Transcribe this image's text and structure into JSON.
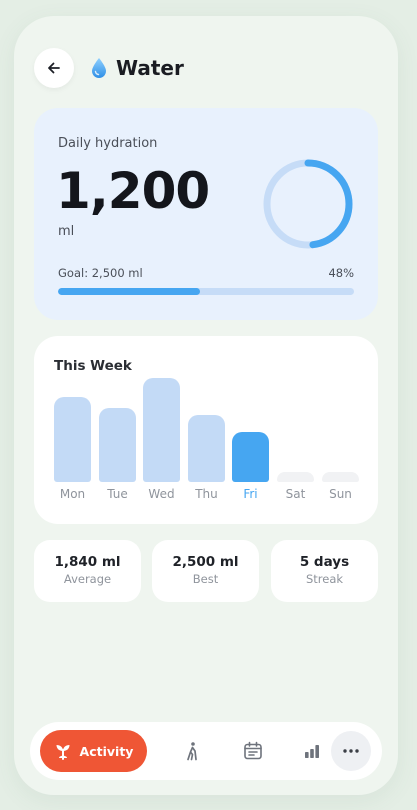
{
  "header": {
    "title": "Water",
    "back_icon": "arrow-left-icon",
    "title_icon": "water-drop-icon"
  },
  "hydration": {
    "label": "Daily hydration",
    "value": "1,200",
    "unit": "ml",
    "goal_text": "Goal: 2,500 ml",
    "percent_text": "48%",
    "progress": 0.48,
    "accent": "#46a6f1",
    "track": "#c6dcf7"
  },
  "week": {
    "title": "This Week",
    "days": [
      {
        "label": "Mon",
        "level": 0.82,
        "active": false
      },
      {
        "label": "Tue",
        "level": 0.71,
        "active": false
      },
      {
        "label": "Wed",
        "level": 1.0,
        "active": false
      },
      {
        "label": "Thu",
        "level": 0.64,
        "active": false
      },
      {
        "label": "Fri",
        "level": 0.48,
        "active": true
      },
      {
        "label": "Sat",
        "level": 0.0,
        "active": false
      },
      {
        "label": "Sun",
        "level": 0.0,
        "active": false
      }
    ],
    "bar_color": "#c3daf6",
    "active_color": "#46a6f1",
    "empty_color": "#f1f2f4"
  },
  "stats": [
    {
      "value": "1,840 ml",
      "label": "Average"
    },
    {
      "value": "2,500 ml",
      "label": "Best"
    },
    {
      "value": "5 days",
      "label": "Streak"
    }
  ],
  "nav": {
    "active_label": "Activity",
    "active_icon": "sprout-icon",
    "items": [
      "walking-icon",
      "calendar-icon",
      "bar-chart-icon",
      "more-icon"
    ],
    "active_color": "#ef5635"
  }
}
